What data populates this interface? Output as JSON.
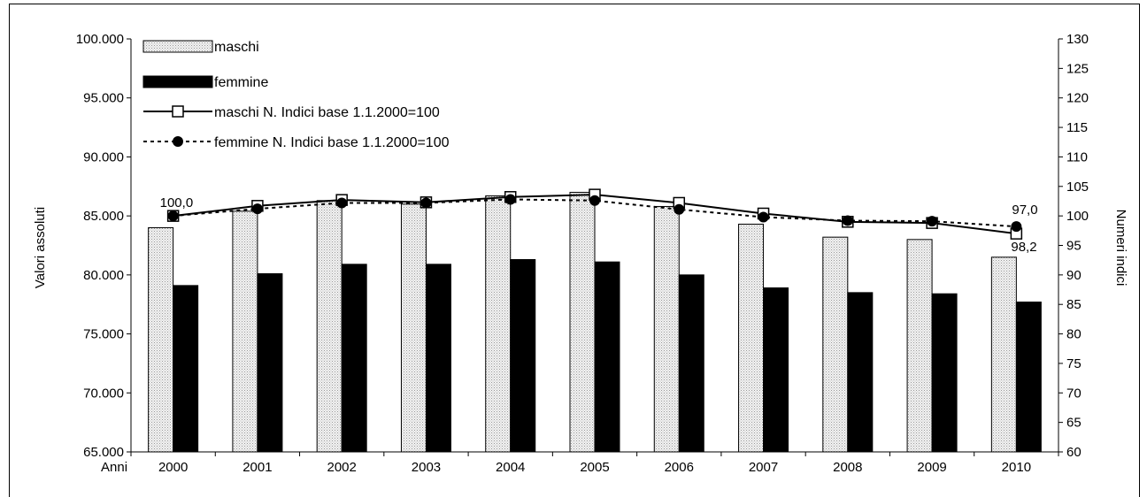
{
  "chart_data": {
    "type": "bar",
    "categories": [
      "2000",
      "2001",
      "2002",
      "2003",
      "2004",
      "2005",
      "2006",
      "2007",
      "2008",
      "2009",
      "2010"
    ],
    "x_axis_title": "Anni",
    "ylabel_left": "Valori assoluti",
    "ylabel_right": "Numeri indici",
    "ylim_left": [
      65000,
      100000
    ],
    "ylim_right": [
      60,
      130
    ],
    "left_ticks": [
      "65.000",
      "70.000",
      "75.000",
      "80.000",
      "85.000",
      "90.000",
      "95.000",
      "100.000"
    ],
    "right_ticks": [
      "60",
      "65",
      "70",
      "75",
      "80",
      "85",
      "90",
      "95",
      "100",
      "105",
      "110",
      "115",
      "120",
      "125",
      "130"
    ],
    "bar_series": [
      {
        "name": "maschi",
        "color": "#e6e6e6",
        "values": [
          84000,
          85400,
          86300,
          86000,
          86700,
          87000,
          85800,
          84300,
          83200,
          83000,
          81500
        ]
      },
      {
        "name": "femmine",
        "color": "#000000",
        "values": [
          79100,
          80100,
          80900,
          80900,
          81300,
          81100,
          80000,
          78900,
          78500,
          78400,
          77700
        ]
      }
    ],
    "line_series": [
      {
        "name": "maschi N. Indici base 1.1.2000=100",
        "style": "solid",
        "marker": "square",
        "values": [
          100.0,
          101.7,
          102.7,
          102.3,
          103.2,
          103.6,
          102.2,
          100.4,
          99.0,
          98.8,
          97.0
        ]
      },
      {
        "name": "femmine N. Indici base 1.1.2000=100",
        "style": "dashed",
        "marker": "circle",
        "values": [
          100.0,
          101.2,
          102.2,
          102.2,
          102.8,
          102.6,
          101.1,
          99.8,
          99.2,
          99.1,
          98.2
        ]
      }
    ],
    "data_labels": [
      {
        "text": "100,0"
      },
      {
        "text": "97,0"
      },
      {
        "text": "98,2"
      }
    ],
    "grid": false,
    "legend_position": "top-left"
  }
}
